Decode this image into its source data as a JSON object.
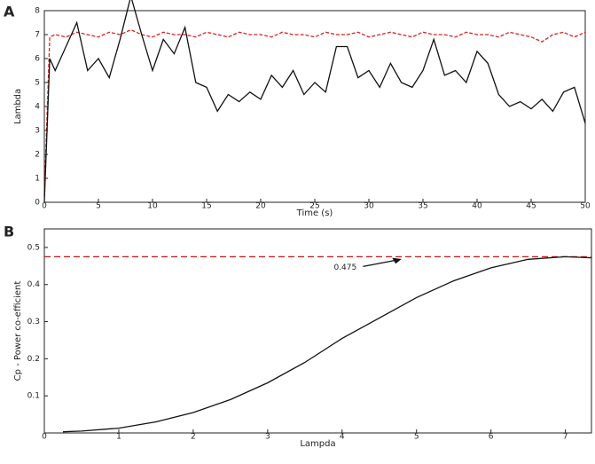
{
  "chart_data": [
    {
      "type": "line",
      "panel": "A",
      "ylabel": "Lambda",
      "xlabel": "Time (s)",
      "xlim": [
        0,
        50
      ],
      "ylim": [
        0,
        8
      ],
      "xticks": [
        0,
        5,
        10,
        15,
        20,
        25,
        30,
        35,
        40,
        45,
        50
      ],
      "yticks": [
        0,
        1,
        2,
        3,
        4,
        5,
        6,
        7,
        8
      ],
      "x": [
        0,
        0.5,
        1,
        2,
        3,
        4,
        5,
        6,
        7,
        8,
        9,
        10,
        11,
        12,
        13,
        14,
        15,
        16,
        17,
        18,
        19,
        20,
        21,
        22,
        23,
        24,
        25,
        26,
        27,
        28,
        29,
        30,
        31,
        32,
        33,
        34,
        35,
        36,
        37,
        38,
        39,
        40,
        41,
        42,
        43,
        44,
        45,
        46,
        47,
        48,
        49,
        50
      ],
      "series": [
        {
          "color": "#e02020",
          "dash": true,
          "values": [
            0.3,
            6.9,
            7.0,
            6.9,
            7.1,
            7.0,
            6.9,
            7.1,
            7.0,
            7.2,
            7.0,
            6.9,
            7.1,
            7.0,
            7.0,
            6.9,
            7.1,
            7.0,
            6.9,
            7.1,
            7.0,
            7.0,
            6.9,
            7.1,
            7.0,
            7.0,
            6.9,
            7.1,
            7.0,
            7.0,
            7.1,
            6.9,
            7.0,
            7.1,
            7.0,
            6.9,
            7.1,
            7.0,
            7.0,
            6.9,
            7.1,
            7.0,
            7.0,
            6.9,
            7.1,
            7.0,
            6.9,
            6.7,
            7.0,
            7.1,
            6.9,
            7.1
          ]
        },
        {
          "color": "#111111",
          "dash": false,
          "values": [
            0,
            6.0,
            5.5,
            6.5,
            7.5,
            5.5,
            6.0,
            5.2,
            6.8,
            8.6,
            7.0,
            5.5,
            6.8,
            6.2,
            7.3,
            5.0,
            4.8,
            3.8,
            4.5,
            4.2,
            4.6,
            4.3,
            5.3,
            4.8,
            5.5,
            4.5,
            5.0,
            4.6,
            6.5,
            6.5,
            5.2,
            5.5,
            4.8,
            5.8,
            5.0,
            4.8,
            5.5,
            6.8,
            5.3,
            5.5,
            5.0,
            6.3,
            5.8,
            4.5,
            4.0,
            4.2,
            3.9,
            4.3,
            3.8,
            4.6,
            4.8,
            3.3
          ]
        }
      ]
    },
    {
      "type": "line",
      "panel": "B",
      "ylabel": "Cp - Power co-efficient",
      "xlabel": "Lampda",
      "xlim": [
        0,
        7.35
      ],
      "ylim": [
        0,
        0.55
      ],
      "xticks": [
        0,
        1,
        2,
        3,
        4,
        5,
        6,
        7
      ],
      "yticks": [
        0.1,
        0.2,
        0.3,
        0.4,
        0.5
      ],
      "x": [
        0.25,
        0.5,
        1,
        1.5,
        2,
        2.5,
        3,
        3.5,
        4,
        4.5,
        5,
        5.5,
        6,
        6.5,
        7,
        7.35
      ],
      "series": [
        {
          "color": "#111111",
          "dash": false,
          "values": [
            0.003,
            0.005,
            0.013,
            0.03,
            0.055,
            0.09,
            0.135,
            0.19,
            0.255,
            0.31,
            0.365,
            0.41,
            0.445,
            0.468,
            0.475,
            0.472
          ]
        }
      ],
      "reference_line": {
        "value": 0.475,
        "label": "0.475",
        "color": "#c01818"
      }
    }
  ]
}
